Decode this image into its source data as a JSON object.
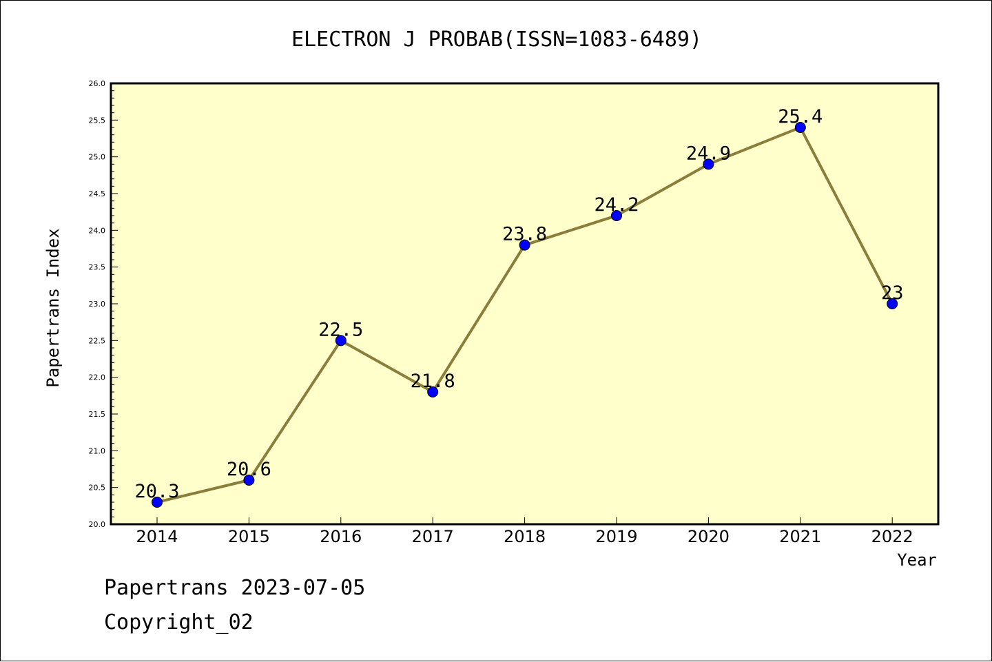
{
  "chart_data": {
    "type": "line",
    "title": "ELECTRON J PROBAB(ISSN=1083-6489)",
    "xlabel": "Year",
    "ylabel": "Papertrans Index",
    "categories": [
      "2014",
      "2015",
      "2016",
      "2017",
      "2018",
      "2019",
      "2020",
      "2021",
      "2022"
    ],
    "values": [
      20.3,
      20.6,
      22.5,
      21.8,
      23.8,
      24.2,
      24.9,
      25.4,
      23
    ],
    "data_labels": [
      "20.3",
      "20.6",
      "22.5",
      "21.8",
      "23.8",
      "24.2",
      "24.9",
      "25.4",
      "23"
    ],
    "ylim": [
      20.0,
      26.0
    ],
    "yticks": [
      "20.0",
      "20.5",
      "21.0",
      "21.5",
      "22.0",
      "22.5",
      "23.0",
      "23.5",
      "24.0",
      "24.5",
      "25.0",
      "25.5",
      "26.0"
    ],
    "grid": false,
    "colors": {
      "plot_background": "#ffffcc",
      "line": "#8b7d3a",
      "marker": "#0000ff"
    }
  },
  "footer": {
    "line1": "Papertrans 2023-07-05",
    "line2": "Copyright_02"
  }
}
